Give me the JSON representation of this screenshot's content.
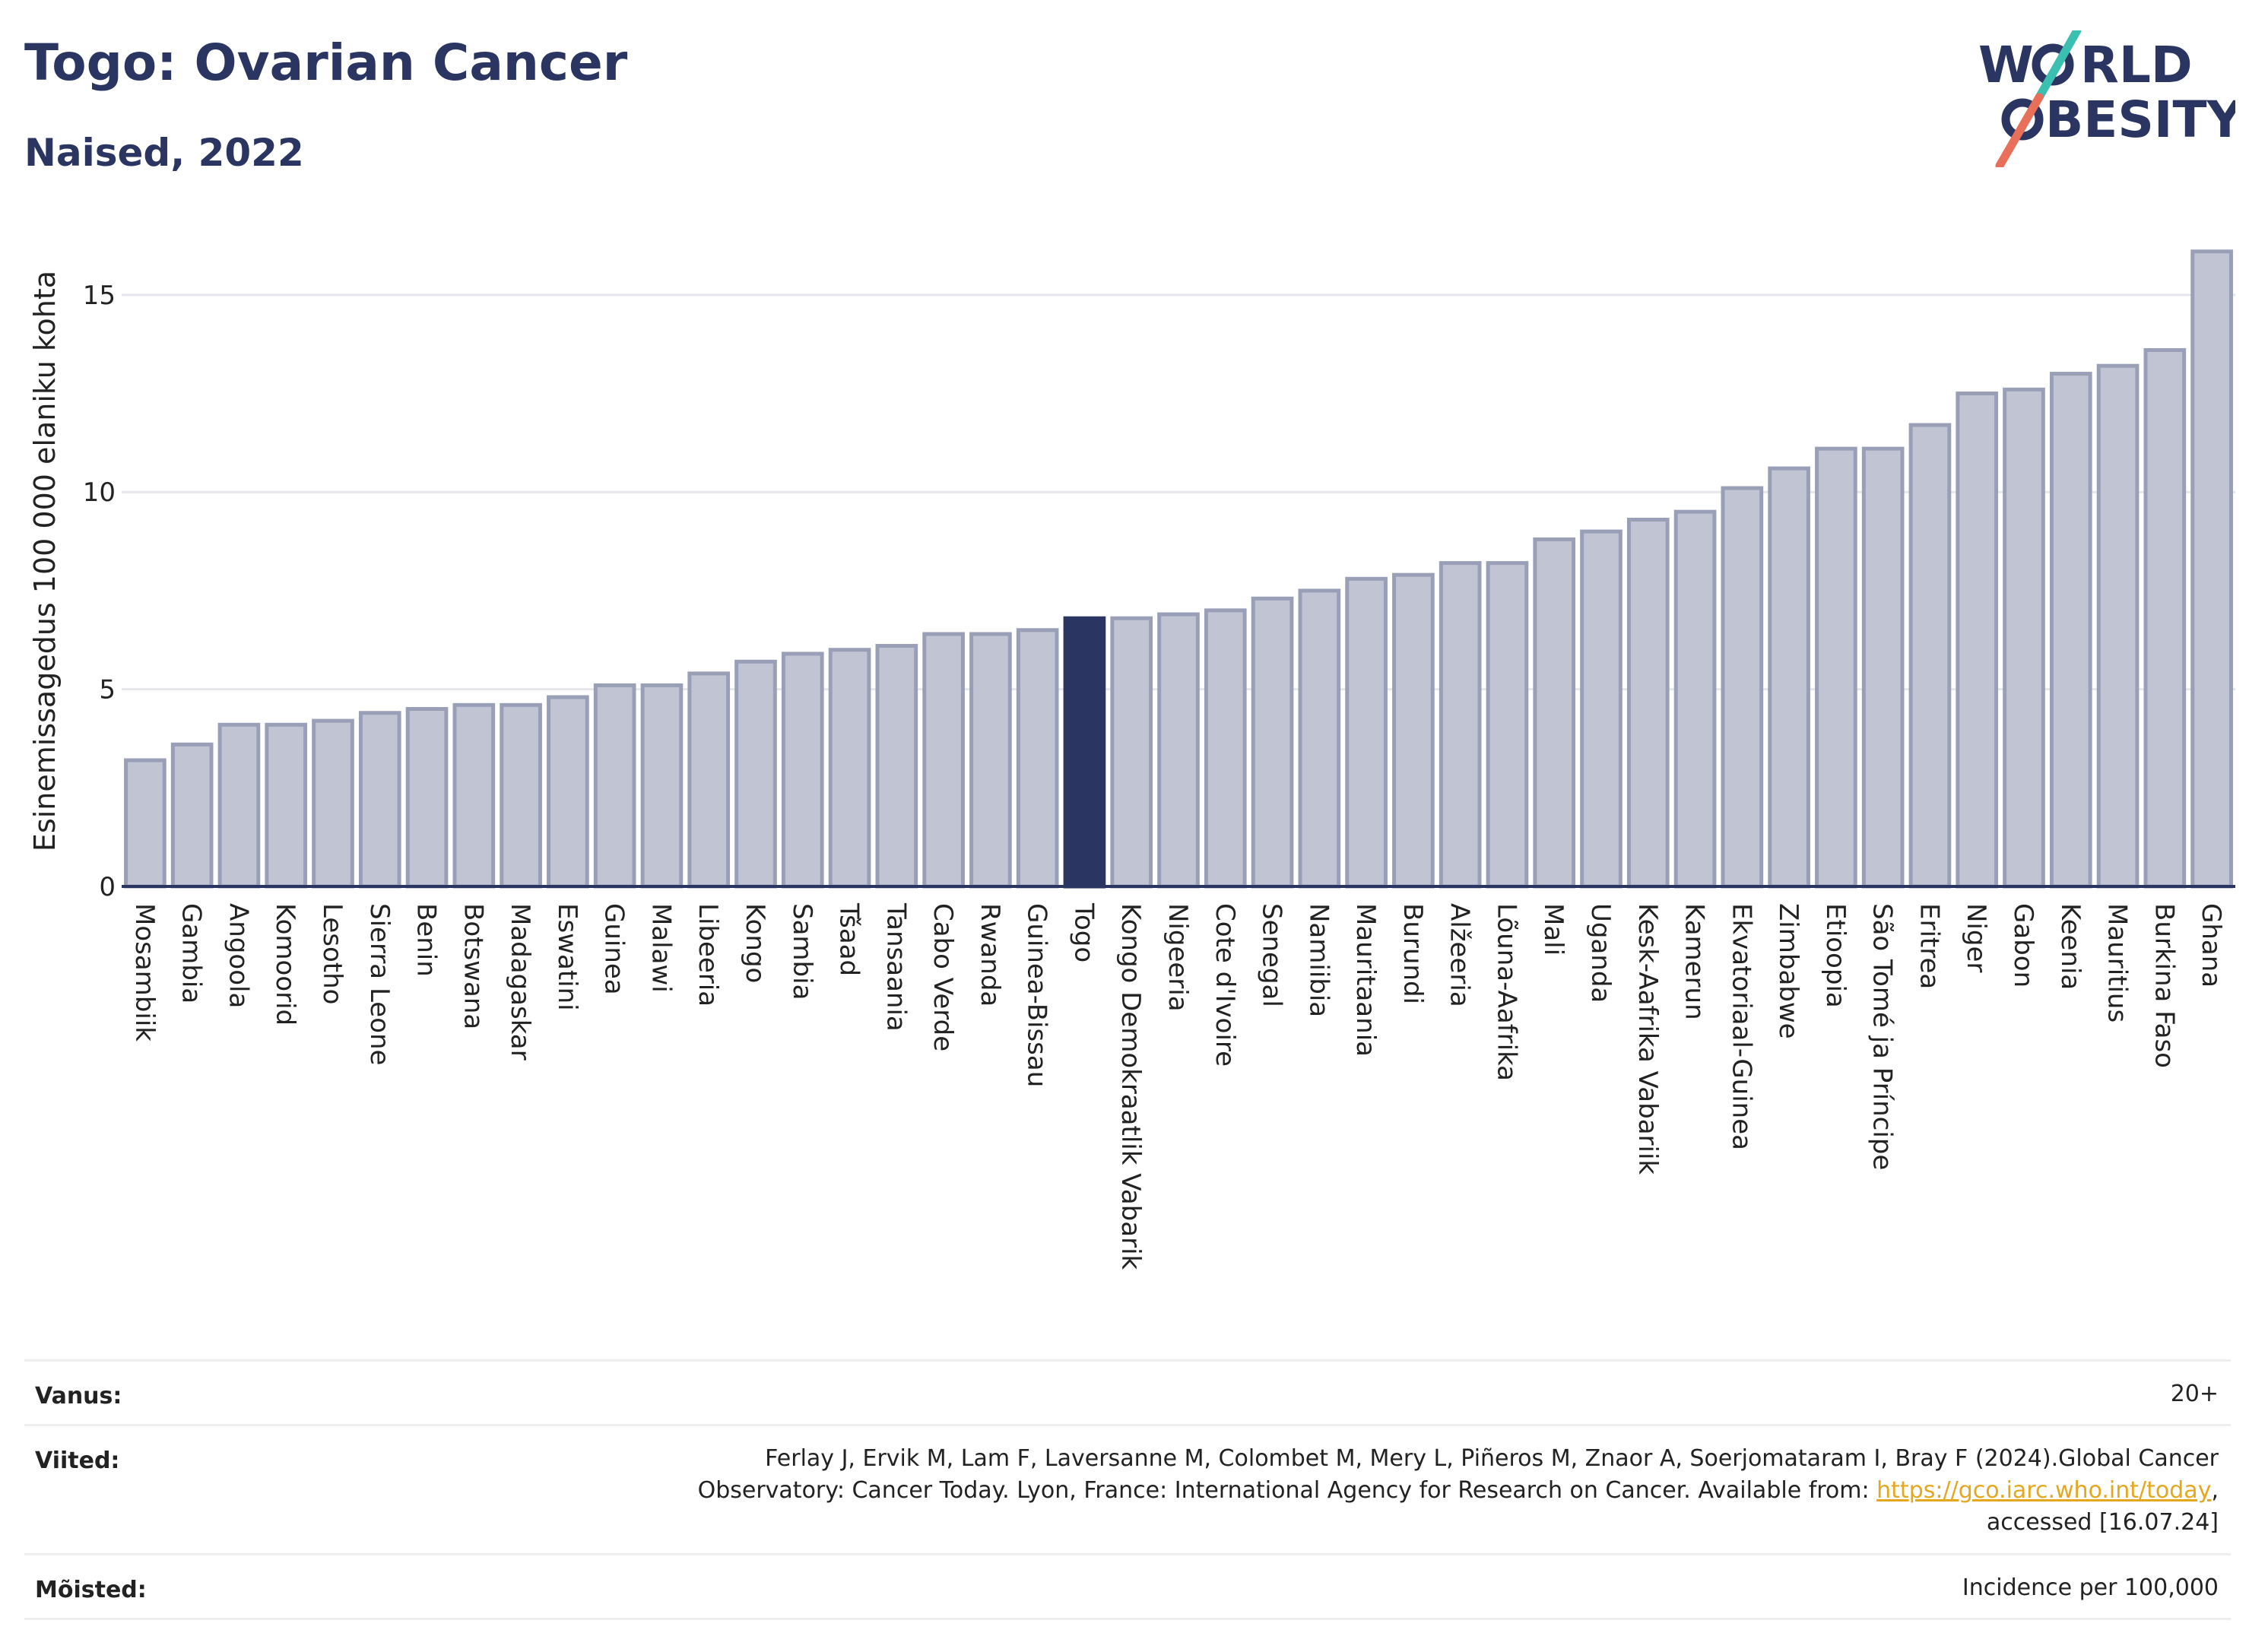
{
  "header": {
    "title": "Togo: Ovarian Cancer",
    "subtitle": "Naised, 2022"
  },
  "logo": {
    "line1_a": "W",
    "line1_b": "RLD",
    "line2_b": "BESITY",
    "slash_colors": [
      "#3bbfb1",
      "#e8705a"
    ],
    "text_color": "#2b3562"
  },
  "chart_data": {
    "type": "bar",
    "ylabel": "Esinemissagedus 100 000 elaniku kohta",
    "ylim": [
      0,
      16.5
    ],
    "yticks": [
      0,
      5,
      10,
      15
    ],
    "highlight": "Togo",
    "colors": {
      "bar": "#c1c4d2",
      "bar_border": "#9a9fb8",
      "highlight": "#2b3562"
    },
    "categories": [
      "Mosambiik",
      "Gambia",
      "Angoola",
      "Komoorid",
      "Lesotho",
      "Sierra Leone",
      "Benin",
      "Botswana",
      "Madagaskar",
      "Eswatini",
      "Guinea",
      "Malawi",
      "Libeeria",
      "Kongo",
      "Sambia",
      "Tšaad",
      "Tansaania",
      "Cabo Verde",
      "Rwanda",
      "Guinea-Bissau",
      "Togo",
      "Kongo Demokraatlik Vabarik",
      "Nigeeria",
      "Cote d'Ivoire",
      "Senegal",
      "Namiibia",
      "Mauritaania",
      "Burundi",
      "Alžeeria",
      "Lõuna-Aafrika",
      "Mali",
      "Uganda",
      "Kesk-Aafrika Vabariik",
      "Kamerun",
      "Ekvatoriaal-Guinea",
      "Zimbabwe",
      "Etioopia",
      "São Tomé ja Príncipe",
      "Eritrea",
      "Niger",
      "Gabon",
      "Keenia",
      "Mauritius",
      "Burkina Faso",
      "Ghana"
    ],
    "values": [
      3.2,
      3.6,
      4.1,
      4.1,
      4.2,
      4.4,
      4.5,
      4.6,
      4.6,
      4.8,
      5.1,
      5.1,
      5.4,
      5.7,
      5.9,
      6.0,
      6.1,
      6.4,
      6.4,
      6.5,
      6.8,
      6.8,
      6.9,
      7.0,
      7.3,
      7.5,
      7.8,
      7.9,
      8.2,
      8.2,
      8.8,
      9.0,
      9.3,
      9.5,
      10.1,
      10.6,
      11.1,
      11.1,
      11.7,
      12.5,
      12.6,
      13.0,
      13.2,
      13.6,
      16.1
    ]
  },
  "info": {
    "age_label": "Vanus:",
    "age_value": "20+",
    "refs_label": "Viited:",
    "refs_line1": "Ferlay J, Ervik M, Lam F, Laversanne M, Colombet M, Mery L, Piñeros M, Znaor A, Soerjomataram I, Bray F (2024).Global Cancer",
    "refs_line2": "Observatory: Cancer Today. Lyon, France: International Agency for Research on Cancer. Available from: ",
    "refs_link": "https://gco.iarc.who.int/today",
    "refs_line2_end": ",",
    "refs_line3": "accessed [16.07.24]",
    "defs_label": "Mõisted:",
    "defs_value": "Incidence per 100,000"
  }
}
